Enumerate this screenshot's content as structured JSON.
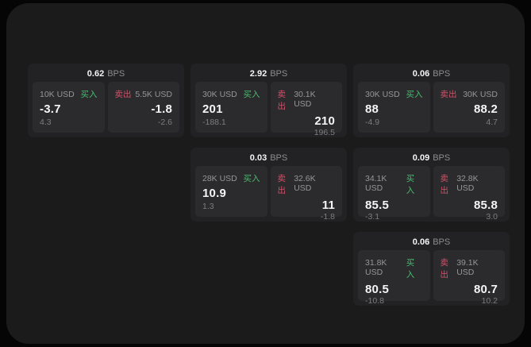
{
  "colors": {
    "frame_bg": "#1b1b1c",
    "card_bg": "#222224",
    "panel_bg": "#2b2b2d",
    "buy_green": "#4aba70",
    "sell_red": "#d25068"
  },
  "cards": [
    {
      "bps": "0.62",
      "unit": "BPS",
      "buy": {
        "amount": "10K USD",
        "label": "买入",
        "value": "-3.7",
        "delta": "4.3"
      },
      "sell": {
        "label": "卖出",
        "amount": "5.5K USD",
        "value": "-1.8",
        "delta": "-2.6"
      }
    },
    {
      "bps": "2.92",
      "unit": "BPS",
      "buy": {
        "amount": "30K USD",
        "label": "买入",
        "value": "201",
        "delta": "-188.1"
      },
      "sell": {
        "label": "卖出",
        "amount": "30.1K USD",
        "value": "210",
        "delta": "196.5"
      }
    },
    {
      "bps": "0.06",
      "unit": "BPS",
      "buy": {
        "amount": "30K USD",
        "label": "买入",
        "value": "88",
        "delta": "-4.9"
      },
      "sell": {
        "label": "卖出",
        "amount": "30K USD",
        "value": "88.2",
        "delta": "4.7"
      }
    },
    {
      "bps": "0.03",
      "unit": "BPS",
      "buy": {
        "amount": "28K USD",
        "label": "买入",
        "value": "10.9",
        "delta": "1.3"
      },
      "sell": {
        "label": "卖出",
        "amount": "32.6K USD",
        "value": "11",
        "delta": "-1.8"
      }
    },
    {
      "bps": "0.09",
      "unit": "BPS",
      "buy": {
        "amount": "34.1K USD",
        "label": "买入",
        "value": "85.5",
        "delta": "-3.1"
      },
      "sell": {
        "label": "卖出",
        "amount": "32.8K USD",
        "value": "85.8",
        "delta": "3.0"
      }
    },
    {
      "bps": "0.06",
      "unit": "BPS",
      "buy": {
        "amount": "31.8K USD",
        "label": "买入",
        "value": "80.5",
        "delta": "-10.8"
      },
      "sell": {
        "label": "卖出",
        "amount": "39.1K USD",
        "value": "80.7",
        "delta": "10.2"
      }
    }
  ]
}
